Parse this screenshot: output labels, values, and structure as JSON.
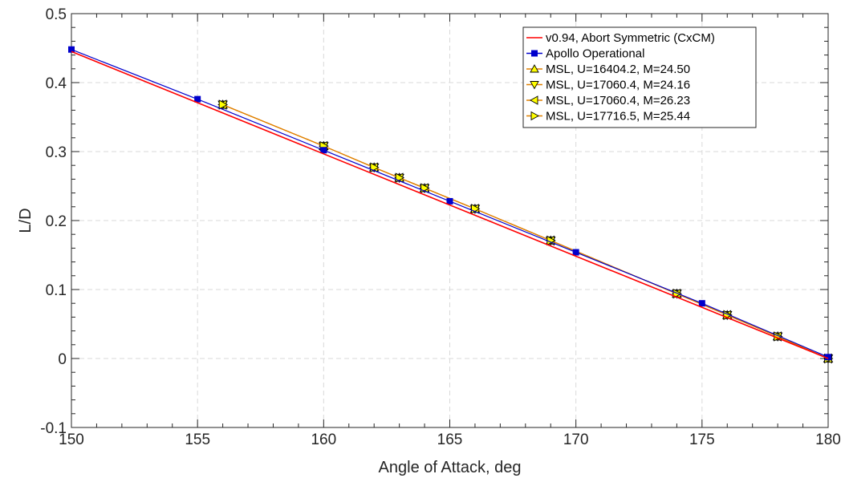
{
  "chart_data": {
    "type": "line",
    "xlabel": "Angle of Attack, deg",
    "ylabel": "L/D",
    "xlim": [
      150,
      180
    ],
    "ylim": [
      -0.1,
      0.5
    ],
    "xticks": [
      150,
      155,
      160,
      165,
      170,
      175,
      180
    ],
    "xtick_labels": [
      "150",
      "155",
      "160",
      "165",
      "170",
      "175",
      "180"
    ],
    "yticks": [
      -0.1,
      0,
      0.1,
      0.2,
      0.3,
      0.4,
      0.5
    ],
    "ytick_labels": [
      "-0.1",
      "0",
      "0.1",
      "0.2",
      "0.3",
      "0.4",
      "0.5"
    ],
    "grid": true,
    "legend_position": "top-right",
    "series": [
      {
        "name": "v0.94, Abort Symmetric (CxCM)",
        "color": "#ff0000",
        "marker": "none",
        "x": [
          150,
          180
        ],
        "y": [
          0.445,
          0.0
        ]
      },
      {
        "name": "Apollo Operational",
        "color": "#0000cc",
        "marker": "square",
        "x": [
          150,
          155,
          160,
          165,
          170,
          175,
          180
        ],
        "y": [
          0.448,
          0.376,
          0.302,
          0.228,
          0.154,
          0.08,
          0.002
        ]
      },
      {
        "name": "MSL, U=16404.2, M=24.50",
        "color": "#e08000",
        "marker": "triangle-up",
        "x": [
          156,
          160,
          162,
          163,
          164,
          166,
          169,
          174,
          176,
          178,
          180
        ],
        "y": [
          0.368,
          0.308,
          0.277,
          0.262,
          0.247,
          0.217,
          0.171,
          0.094,
          0.063,
          0.032,
          0.0
        ]
      },
      {
        "name": "MSL, U=17060.4, M=24.16",
        "color": "#e08000",
        "marker": "triangle-down",
        "x": [
          156,
          160,
          162,
          163,
          164,
          166,
          169,
          174,
          176,
          178,
          180
        ],
        "y": [
          0.368,
          0.308,
          0.277,
          0.262,
          0.247,
          0.217,
          0.171,
          0.094,
          0.063,
          0.032,
          0.0
        ]
      },
      {
        "name": "MSL, U=17060.4, M=26.23",
        "color": "#e08000",
        "marker": "triangle-left",
        "x": [
          156,
          160,
          162,
          163,
          164,
          166,
          169,
          174,
          176,
          178,
          180
        ],
        "y": [
          0.368,
          0.308,
          0.277,
          0.262,
          0.247,
          0.217,
          0.171,
          0.094,
          0.063,
          0.032,
          0.0
        ]
      },
      {
        "name": "MSL, U=17716.5, M=25.44",
        "color": "#e08000",
        "marker": "triangle-right",
        "x": [
          156,
          160,
          162,
          163,
          164,
          166,
          169,
          174,
          176,
          178,
          180
        ],
        "y": [
          0.368,
          0.308,
          0.277,
          0.262,
          0.247,
          0.217,
          0.171,
          0.094,
          0.063,
          0.032,
          0.0
        ]
      }
    ],
    "marker_fill": "#ffff00"
  }
}
